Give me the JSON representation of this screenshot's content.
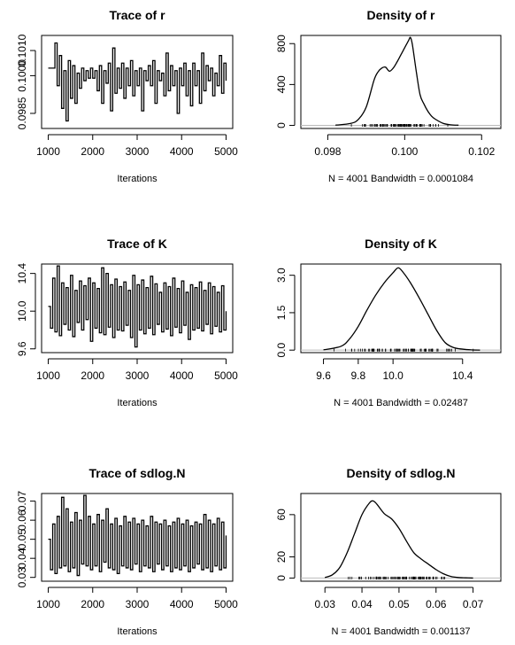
{
  "chart_data": [
    {
      "type": "line",
      "title": "Trace of r",
      "xlabel": "Iterations",
      "ylabel": "",
      "xlim": [
        850,
        5150
      ],
      "ylim": [
        0.0979,
        0.1016
      ],
      "xticks": [
        1000,
        2000,
        3000,
        4000,
        5000
      ],
      "xtick_labels": [
        "1000",
        "2000",
        "3000",
        "4000",
        "5000"
      ],
      "yticks": [
        0.0985,
        0.1,
        0.101
      ],
      "ytick_labels": [
        "0.0985",
        "0.1000",
        "0.1010"
      ],
      "series": [
        {
          "x": [
            1000,
            1075,
            1150,
            1200,
            1250,
            1300,
            1350,
            1400,
            1450,
            1500,
            1550,
            1600,
            1650,
            1700,
            1750,
            1800,
            1850,
            1900,
            1950,
            2000,
            2050,
            2100,
            2150,
            2200,
            2250,
            2300,
            2350,
            2400,
            2450,
            2500,
            2550,
            2600,
            2650,
            2700,
            2750,
            2800,
            2850,
            2900,
            2950,
            3000,
            3050,
            3100,
            3150,
            3200,
            3250,
            3300,
            3350,
            3400,
            3450,
            3500,
            3550,
            3600,
            3650,
            3700,
            3750,
            3800,
            3850,
            3900,
            3950,
            4000,
            4050,
            4100,
            4150,
            4200,
            4250,
            4300,
            4350,
            4400,
            4450,
            4500,
            4550,
            4600,
            4650,
            4700,
            4750,
            4800,
            4850,
            4900,
            4950,
            5000
          ],
          "y": [
            0.1003,
            0.1003,
            0.1013,
            0.0996,
            0.1008,
            0.0987,
            0.1002,
            0.0982,
            0.1006,
            0.0991,
            0.1004,
            0.0989,
            0.1001,
            0.0995,
            0.1003,
            0.0998,
            0.1002,
            0.0999,
            0.1003,
            0.0999,
            0.1002,
            0.0994,
            0.1004,
            0.0989,
            0.1002,
            0.0997,
            0.1005,
            0.0986,
            0.1011,
            0.0993,
            0.1003,
            0.0995,
            0.1005,
            0.0991,
            0.1003,
            0.0996,
            0.1006,
            0.0992,
            0.1002,
            0.0996,
            0.1003,
            0.0986,
            0.1002,
            0.0998,
            0.1004,
            0.0996,
            0.1006,
            0.0989,
            0.1002,
            0.0998,
            0.1001,
            0.0992,
            0.1009,
            0.0994,
            0.1004,
            0.0996,
            0.1002,
            0.0985,
            0.1003,
            0.0996,
            0.1005,
            0.0992,
            0.1002,
            0.0988,
            0.1005,
            0.0996,
            0.1002,
            0.0989,
            0.1009,
            0.0994,
            0.1004,
            0.0998,
            0.1003,
            0.0992,
            0.1001,
            0.0996,
            0.1008,
            0.0993,
            0.1005,
            0.0998
          ]
        }
      ]
    },
    {
      "type": "line",
      "title": "Density of r",
      "xlabel": "N = 4001   Bandwidth = 0.0001084",
      "ylabel": "",
      "xlim": [
        0.0973,
        0.1025
      ],
      "ylim": [
        -30,
        880
      ],
      "xticks": [
        0.098,
        0.1,
        0.102
      ],
      "xtick_labels": [
        "0.098",
        "0.100",
        "0.102"
      ],
      "yticks": [
        0,
        400,
        800
      ],
      "ytick_labels": [
        "0",
        "400",
        "800"
      ],
      "series": [
        {
          "x": [
            0.0982,
            0.0986,
            0.0988,
            0.099,
            0.0992,
            0.0993,
            0.0994,
            0.0995,
            0.0996,
            0.0997,
            0.0998,
            0.0999,
            0.1,
            0.1001,
            0.10015,
            0.1002,
            0.1003,
            0.1004,
            0.1005,
            0.1006,
            0.1007,
            0.1008,
            0.101,
            0.1012,
            0.1014
          ],
          "y": [
            2,
            20,
            60,
            180,
            440,
            520,
            560,
            570,
            530,
            560,
            620,
            690,
            760,
            830,
            860,
            790,
            530,
            300,
            210,
            140,
            90,
            60,
            20,
            6,
            2
          ]
        }
      ]
    },
    {
      "type": "line",
      "title": "Trace of K",
      "xlabel": "Iterations",
      "ylabel": "",
      "xlim": [
        850,
        5150
      ],
      "ylim": [
        9.56,
        10.5
      ],
      "xticks": [
        1000,
        2000,
        3000,
        4000,
        5000
      ],
      "xtick_labels": [
        "1000",
        "2000",
        "3000",
        "4000",
        "5000"
      ],
      "yticks": [
        9.6,
        10.0,
        10.4
      ],
      "ytick_labels": [
        "9.6",
        "10.0",
        "10.4"
      ],
      "series": [
        {
          "x": [
            1000,
            1050,
            1100,
            1150,
            1200,
            1250,
            1300,
            1350,
            1400,
            1450,
            1500,
            1550,
            1600,
            1650,
            1700,
            1750,
            1800,
            1850,
            1900,
            1950,
            2000,
            2050,
            2100,
            2150,
            2200,
            2250,
            2300,
            2350,
            2400,
            2450,
            2500,
            2550,
            2600,
            2650,
            2700,
            2750,
            2800,
            2850,
            2900,
            2950,
            3000,
            3050,
            3100,
            3150,
            3200,
            3250,
            3300,
            3350,
            3400,
            3450,
            3500,
            3550,
            3600,
            3650,
            3700,
            3750,
            3800,
            3850,
            3900,
            3950,
            4000,
            4050,
            4100,
            4150,
            4200,
            4250,
            4300,
            4350,
            4400,
            4450,
            4500,
            4550,
            4600,
            4650,
            4700,
            4750,
            4800,
            4850,
            4900,
            4950,
            5000
          ],
          "y": [
            10.05,
            9.82,
            10.35,
            9.78,
            10.48,
            9.74,
            10.3,
            9.86,
            10.25,
            9.8,
            10.38,
            9.73,
            10.22,
            9.88,
            10.32,
            9.8,
            10.27,
            9.91,
            10.35,
            9.68,
            10.3,
            9.82,
            10.24,
            9.77,
            10.46,
            9.75,
            10.4,
            9.83,
            10.28,
            9.72,
            10.34,
            9.8,
            10.26,
            9.79,
            10.31,
            9.85,
            10.22,
            9.72,
            10.38,
            9.62,
            10.28,
            9.8,
            10.33,
            9.76,
            10.25,
            9.82,
            10.37,
            9.75,
            10.29,
            9.86,
            10.2,
            9.78,
            10.3,
            9.81,
            10.26,
            9.74,
            10.35,
            9.83,
            10.24,
            9.77,
            10.32,
            9.85,
            10.2,
            9.7,
            10.28,
            9.8,
            10.25,
            9.82,
            10.31,
            9.79,
            10.22,
            9.86,
            10.3,
            9.76,
            10.26,
            9.84,
            10.2,
            9.78,
            10.27,
            9.8,
            10.0
          ]
        }
      ]
    },
    {
      "type": "line",
      "title": "Density of K",
      "xlabel": "N = 4001   Bandwidth = 0.02487",
      "ylabel": "",
      "xlim": [
        9.47,
        10.62
      ],
      "ylim": [
        -0.1,
        3.45
      ],
      "xticks": [
        9.6,
        9.8,
        10.0,
        10.4
      ],
      "xtick_labels": [
        "9.6",
        "9.8",
        "10.0",
        "10.4"
      ],
      "yticks": [
        0,
        1.5,
        3.0
      ],
      "ytick_labels": [
        "0.0",
        "1.5",
        "3.0"
      ],
      "series": [
        {
          "x": [
            9.6,
            9.7,
            9.75,
            9.8,
            9.85,
            9.9,
            9.95,
            10.0,
            10.03,
            10.06,
            10.1,
            10.15,
            10.2,
            10.25,
            10.3,
            10.35,
            10.4,
            10.45,
            10.5
          ],
          "y": [
            0.01,
            0.15,
            0.45,
            0.95,
            1.6,
            2.2,
            2.7,
            3.1,
            3.3,
            3.1,
            2.7,
            2.1,
            1.45,
            0.8,
            0.3,
            0.1,
            0.04,
            0.01,
            0.0
          ]
        }
      ]
    },
    {
      "type": "line",
      "title": "Trace of sdlog.N",
      "xlabel": "Iterations",
      "ylabel": "",
      "xlim": [
        850,
        5150
      ],
      "ylim": [
        0.028,
        0.074
      ],
      "xticks": [
        1000,
        2000,
        3000,
        4000,
        5000
      ],
      "xtick_labels": [
        "1000",
        "2000",
        "3000",
        "4000",
        "5000"
      ],
      "yticks": [
        0.03,
        0.04,
        0.05,
        0.06,
        0.07
      ],
      "ytick_labels": [
        "0.03",
        "0.04",
        "0.05",
        "0.06",
        "0.07"
      ],
      "series": [
        {
          "x": [
            1000,
            1050,
            1100,
            1150,
            1200,
            1250,
            1300,
            1350,
            1400,
            1450,
            1500,
            1550,
            1600,
            1650,
            1700,
            1750,
            1800,
            1850,
            1900,
            1950,
            2000,
            2050,
            2100,
            2150,
            2200,
            2250,
            2300,
            2350,
            2400,
            2450,
            2500,
            2550,
            2600,
            2650,
            2700,
            2750,
            2800,
            2850,
            2900,
            2950,
            3000,
            3050,
            3100,
            3150,
            3200,
            3250,
            3300,
            3350,
            3400,
            3450,
            3500,
            3550,
            3600,
            3650,
            3700,
            3750,
            3800,
            3850,
            3900,
            3950,
            4000,
            4050,
            4100,
            4150,
            4200,
            4250,
            4300,
            4350,
            4400,
            4450,
            4500,
            4550,
            4600,
            4650,
            4700,
            4750,
            4800,
            4850,
            4900,
            4950,
            5000
          ],
          "y": [
            0.05,
            0.034,
            0.058,
            0.032,
            0.062,
            0.035,
            0.072,
            0.036,
            0.066,
            0.033,
            0.059,
            0.035,
            0.064,
            0.031,
            0.06,
            0.037,
            0.073,
            0.036,
            0.062,
            0.034,
            0.058,
            0.036,
            0.063,
            0.033,
            0.06,
            0.038,
            0.066,
            0.035,
            0.058,
            0.034,
            0.061,
            0.032,
            0.057,
            0.036,
            0.062,
            0.035,
            0.059,
            0.034,
            0.061,
            0.037,
            0.058,
            0.033,
            0.06,
            0.036,
            0.057,
            0.035,
            0.062,
            0.033,
            0.059,
            0.037,
            0.058,
            0.034,
            0.06,
            0.036,
            0.057,
            0.033,
            0.059,
            0.035,
            0.061,
            0.034,
            0.058,
            0.036,
            0.06,
            0.033,
            0.057,
            0.035,
            0.059,
            0.037,
            0.058,
            0.034,
            0.063,
            0.035,
            0.06,
            0.033,
            0.058,
            0.036,
            0.061,
            0.034,
            0.059,
            0.035,
            0.052
          ]
        }
      ]
    },
    {
      "type": "line",
      "title": "Density of sdlog.N",
      "xlabel": "N = 4001   Bandwidth = 0.001137",
      "ylabel": "",
      "xlim": [
        0.0235,
        0.0775
      ],
      "ylim": [
        -3,
        80
      ],
      "xticks": [
        0.03,
        0.04,
        0.05,
        0.06,
        0.07
      ],
      "xtick_labels": [
        "0.03",
        "0.04",
        "0.05",
        "0.06",
        "0.07"
      ],
      "yticks": [
        0,
        20,
        60
      ],
      "ytick_labels": [
        "0",
        "20",
        "60"
      ],
      "series": [
        {
          "x": [
            0.03,
            0.032,
            0.034,
            0.036,
            0.038,
            0.04,
            0.042,
            0.043,
            0.044,
            0.046,
            0.048,
            0.05,
            0.052,
            0.054,
            0.056,
            0.058,
            0.06,
            0.062,
            0.064,
            0.066,
            0.068,
            0.07
          ],
          "y": [
            0.5,
            3,
            10,
            24,
            42,
            60,
            71,
            73,
            70,
            61,
            56,
            47,
            35,
            24,
            18,
            13,
            8,
            4,
            1.5,
            0.5,
            0.2,
            0.0
          ]
        }
      ]
    }
  ]
}
